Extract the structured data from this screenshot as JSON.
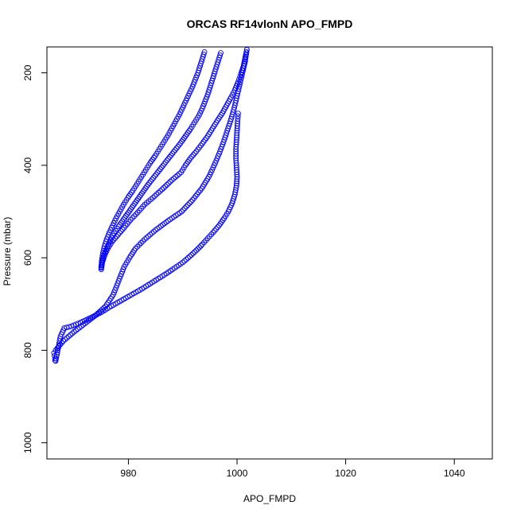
{
  "chart_data": {
    "type": "scatter",
    "title": "ORCAS RF14vlonN APO_FMPD",
    "xlabel": "APO_FMPD",
    "ylabel": "Pressure (mbar)",
    "xlim": [
      965,
      1047
    ],
    "ylim": [
      1035,
      144
    ],
    "y_reversed": true,
    "grid": false,
    "marker": "open-circle",
    "series_color": "#0000ff",
    "xticks": [
      980,
      1000,
      1020,
      1040
    ],
    "yticks": [
      200,
      400,
      600,
      800,
      1000
    ],
    "series": [
      {
        "values_xy": [
          [
            966.5,
            822
          ],
          [
            966.5,
            818
          ],
          [
            966.4,
            812
          ],
          [
            966.3,
            806
          ],
          [
            966.6,
            800
          ],
          [
            968,
            780
          ],
          [
            970,
            760
          ],
          [
            972,
            742
          ],
          [
            974,
            724
          ],
          [
            975.8,
            705
          ],
          [
            977.2,
            680
          ],
          [
            978.2,
            650
          ],
          [
            979.2,
            620
          ],
          [
            980.2,
            600
          ],
          [
            981.3,
            580
          ],
          [
            983,
            560
          ],
          [
            985,
            540
          ],
          [
            987.3,
            520
          ],
          [
            989.8,
            500
          ],
          [
            991.8,
            475
          ],
          [
            993.5,
            450
          ],
          [
            994.8,
            425
          ],
          [
            995.8,
            400
          ],
          [
            996.7,
            375
          ],
          [
            997.5,
            350
          ],
          [
            998.2,
            325
          ],
          [
            998.9,
            300
          ],
          [
            999.5,
            275
          ],
          [
            1000,
            250
          ],
          [
            1000.5,
            225
          ],
          [
            1001,
            200
          ],
          [
            1001.5,
            175
          ],
          [
            1001.8,
            150
          ]
        ]
      },
      {
        "values_xy": [
          [
            975,
            625
          ],
          [
            975.2,
            610
          ],
          [
            975.6,
            595
          ],
          [
            976.2,
            580
          ],
          [
            977,
            565
          ],
          [
            978.1,
            550
          ],
          [
            979.2,
            535
          ],
          [
            980.4,
            518
          ],
          [
            981.7,
            502
          ],
          [
            983,
            485
          ],
          [
            984.5,
            470
          ],
          [
            986.2,
            452
          ],
          [
            988,
            432
          ],
          [
            989.7,
            415
          ],
          [
            990.5,
            400
          ],
          [
            991.4,
            385
          ],
          [
            992.5,
            370
          ],
          [
            993.6,
            353
          ],
          [
            994.6,
            337
          ],
          [
            995.5,
            320
          ],
          [
            996.4,
            303
          ],
          [
            997.3,
            287
          ],
          [
            998.1,
            270
          ],
          [
            998.9,
            253
          ],
          [
            999.6,
            237
          ],
          [
            1000.2,
            220
          ],
          [
            1000.7,
            203
          ],
          [
            1001.2,
            185
          ],
          [
            1001.5,
            167
          ],
          [
            1001.8,
            150
          ]
        ]
      },
      {
        "values_xy": [
          [
            975,
            622
          ],
          [
            975.2,
            607
          ],
          [
            975.6,
            592
          ],
          [
            976.1,
            577
          ],
          [
            976.7,
            562
          ],
          [
            977.4,
            547
          ],
          [
            978.2,
            532
          ],
          [
            979.1,
            517
          ],
          [
            980,
            502
          ],
          [
            980.9,
            487
          ],
          [
            981.8,
            472
          ],
          [
            982.7,
            457
          ],
          [
            983.6,
            442
          ],
          [
            984.6,
            427
          ],
          [
            985.6,
            412
          ],
          [
            986.6,
            397
          ],
          [
            987.6,
            382
          ],
          [
            988.6,
            367
          ],
          [
            989.6,
            352
          ],
          [
            990.5,
            337
          ],
          [
            991.4,
            322
          ],
          [
            992.2,
            307
          ],
          [
            993,
            292
          ],
          [
            993.6,
            277
          ],
          [
            994.1,
            262
          ],
          [
            994.6,
            247
          ],
          [
            995,
            232
          ],
          [
            995.4,
            217
          ],
          [
            995.8,
            202
          ],
          [
            996.2,
            187
          ],
          [
            996.6,
            172
          ],
          [
            997,
            157
          ]
        ]
      },
      {
        "values_xy": [
          [
            975,
            620
          ],
          [
            975.1,
            605
          ],
          [
            975.3,
            590
          ],
          [
            975.6,
            575
          ],
          [
            976,
            560
          ],
          [
            976.5,
            545
          ],
          [
            977.1,
            530
          ],
          [
            977.7,
            515
          ],
          [
            978.4,
            500
          ],
          [
            979.1,
            485
          ],
          [
            979.9,
            470
          ],
          [
            980.8,
            455
          ],
          [
            981.6,
            440
          ],
          [
            982.4,
            425
          ],
          [
            983.2,
            410
          ],
          [
            984,
            395
          ],
          [
            984.9,
            380
          ],
          [
            985.7,
            365
          ],
          [
            986.5,
            350
          ],
          [
            987.3,
            335
          ],
          [
            988,
            320
          ],
          [
            988.7,
            305
          ],
          [
            989.4,
            290
          ],
          [
            990,
            275
          ],
          [
            990.6,
            260
          ],
          [
            991.2,
            245
          ],
          [
            991.8,
            230
          ],
          [
            992.3,
            215
          ],
          [
            992.8,
            200
          ],
          [
            993.2,
            185
          ],
          [
            993.6,
            170
          ],
          [
            994,
            155
          ]
        ]
      },
      {
        "values_xy": [
          [
            966.6,
            823
          ],
          [
            967,
            800
          ],
          [
            967.5,
            770
          ],
          [
            968.2,
            752
          ],
          [
            969.5,
            748
          ],
          [
            971.2,
            740
          ],
          [
            973,
            730
          ],
          [
            975,
            718
          ],
          [
            976.5,
            707
          ],
          [
            978,
            697
          ],
          [
            979.5,
            687
          ],
          [
            981,
            677
          ],
          [
            982.5,
            667
          ],
          [
            984,
            656
          ],
          [
            985.5,
            645
          ],
          [
            987,
            634
          ],
          [
            988.5,
            622
          ],
          [
            990,
            610
          ],
          [
            991.3,
            597
          ],
          [
            992.5,
            584
          ],
          [
            993.6,
            571
          ],
          [
            994.6,
            558
          ],
          [
            995.6,
            545
          ],
          [
            996.7,
            530
          ],
          [
            997.6,
            515
          ],
          [
            998.4,
            500
          ],
          [
            999.1,
            482
          ],
          [
            999.6,
            463
          ],
          [
            999.9,
            444
          ],
          [
            1000,
            425
          ],
          [
            999.9,
            405
          ],
          [
            999.8,
            385
          ],
          [
            999.8,
            365
          ],
          [
            999.9,
            345
          ],
          [
            1000,
            325
          ],
          [
            1000.1,
            305
          ],
          [
            1000.2,
            288
          ]
        ]
      }
    ]
  }
}
